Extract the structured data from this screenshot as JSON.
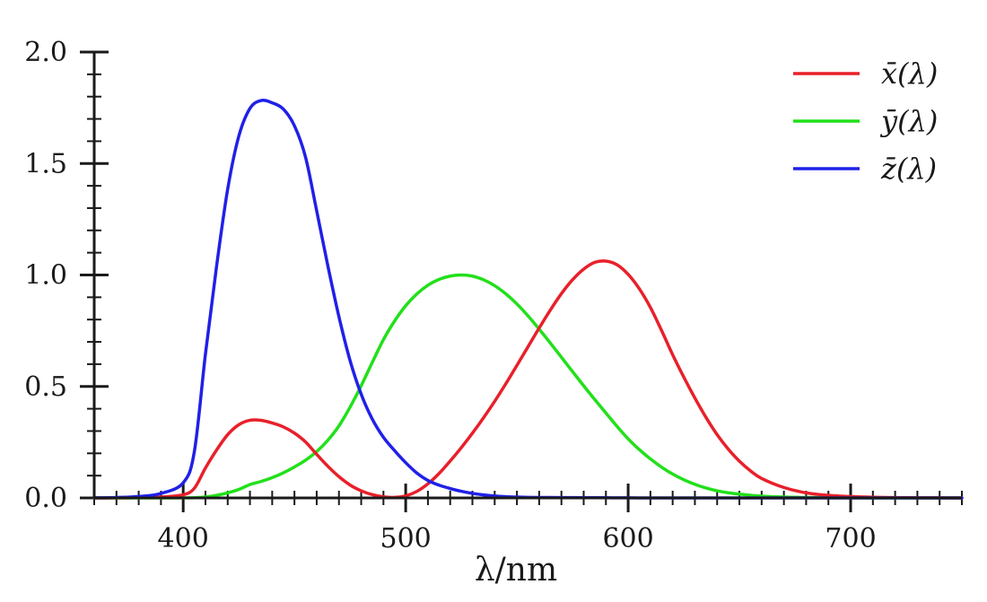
{
  "chart_data": {
    "type": "line",
    "title": "",
    "xlabel": "λ/nm",
    "ylabel": "",
    "xlim": [
      360,
      750
    ],
    "ylim": [
      0,
      2.0
    ],
    "x_ticks": [
      400,
      500,
      600,
      700
    ],
    "x_tick_labels": [
      "400",
      "500",
      "600",
      "700"
    ],
    "x_minor_step": 10,
    "y_ticks": [
      0.0,
      0.5,
      1.0,
      1.5,
      2.0
    ],
    "y_tick_labels": [
      "0.0",
      "0.5",
      "1.0",
      "1.5",
      "2.0"
    ],
    "y_minor_step": 0.1,
    "grid": false,
    "legend_position": "top-right",
    "x": [
      360,
      370,
      380,
      390,
      400,
      405,
      410,
      415,
      420,
      425,
      430,
      435,
      440,
      445,
      450,
      455,
      460,
      465,
      470,
      475,
      480,
      485,
      490,
      495,
      500,
      505,
      510,
      515,
      520,
      525,
      530,
      535,
      540,
      545,
      550,
      555,
      560,
      565,
      570,
      575,
      580,
      585,
      590,
      595,
      600,
      605,
      610,
      615,
      620,
      625,
      630,
      635,
      640,
      645,
      650,
      655,
      660,
      670,
      680,
      690,
      700,
      710,
      720,
      730,
      740,
      750
    ],
    "series": [
      {
        "name": "x̄(λ)",
        "color": "#e8202a",
        "values": [
          0.0001,
          0.0004,
          0.0014,
          0.0042,
          0.0143,
          0.0435,
          0.1344,
          0.2148,
          0.2839,
          0.3285,
          0.3483,
          0.3481,
          0.3362,
          0.3187,
          0.2908,
          0.2511,
          0.1954,
          0.1421,
          0.0956,
          0.058,
          0.032,
          0.0147,
          0.0049,
          0.0024,
          0.0093,
          0.0291,
          0.0633,
          0.1096,
          0.1655,
          0.2257,
          0.2904,
          0.3597,
          0.4334,
          0.5121,
          0.5945,
          0.6784,
          0.7621,
          0.8425,
          0.9163,
          0.9786,
          1.0263,
          1.0567,
          1.0622,
          1.0456,
          1.0026,
          0.9384,
          0.8544,
          0.7514,
          0.6424,
          0.5419,
          0.4479,
          0.3608,
          0.2835,
          0.2187,
          0.1649,
          0.1212,
          0.0874,
          0.0468,
          0.0227,
          0.0114,
          0.0058,
          0.0029,
          0.0014,
          0.0007,
          0.0003,
          0.0001
        ]
      },
      {
        "name": "ȳ(λ)",
        "color": "#22e01a",
        "values": [
          0.0,
          0.0,
          0.0,
          0.0001,
          0.0004,
          0.0012,
          0.004,
          0.0116,
          0.023,
          0.038,
          0.06,
          0.0739,
          0.091,
          0.1126,
          0.139,
          0.1693,
          0.208,
          0.2586,
          0.323,
          0.4073,
          0.503,
          0.6082,
          0.71,
          0.7932,
          0.862,
          0.9149,
          0.954,
          0.9803,
          0.995,
          1.0,
          0.995,
          0.9786,
          0.952,
          0.9154,
          0.87,
          0.8163,
          0.757,
          0.6949,
          0.631,
          0.5668,
          0.503,
          0.4412,
          0.381,
          0.321,
          0.265,
          0.217,
          0.175,
          0.1382,
          0.107,
          0.0816,
          0.061,
          0.0446,
          0.032,
          0.0232,
          0.017,
          0.0119,
          0.0082,
          0.0041,
          0.0021,
          0.001,
          0.0005,
          0.0002,
          0.0001,
          0.0001,
          0.0,
          0.0
        ]
      },
      {
        "name": "z̄(λ)",
        "color": "#2020e8",
        "values": [
          0.0006,
          0.0019,
          0.0065,
          0.0201,
          0.0679,
          0.2074,
          0.6456,
          1.0391,
          1.3856,
          1.623,
          1.7471,
          1.7826,
          1.7721,
          1.7441,
          1.6692,
          1.5281,
          1.2876,
          1.0419,
          0.813,
          0.6162,
          0.4652,
          0.3533,
          0.272,
          0.2123,
          0.1582,
          0.1117,
          0.0782,
          0.0573,
          0.0422,
          0.0298,
          0.0203,
          0.0134,
          0.0087,
          0.0057,
          0.0039,
          0.0027,
          0.0021,
          0.0018,
          0.0017,
          0.0014,
          0.0011,
          0.001,
          0.0008,
          0.0006,
          0.0003,
          0.0002,
          0.0002,
          0.0,
          0.0,
          0.0,
          0.0,
          0.0,
          0.0,
          0.0,
          0.0,
          0.0,
          0.0,
          0.0,
          0.0,
          0.0,
          0.0,
          0.0,
          0.0,
          0.0,
          0.0,
          0.0
        ]
      }
    ]
  }
}
